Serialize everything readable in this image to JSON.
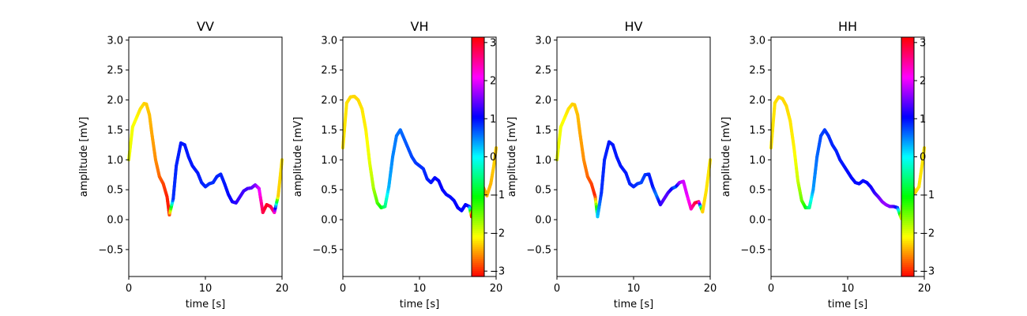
{
  "chart_data": {
    "type": "line",
    "xlabel": "time [s]",
    "ylabel": "amplitude [mV]",
    "xlim": [
      0,
      20
    ],
    "ylim": [
      -0.95,
      3.05
    ],
    "xticks": [
      "0",
      "10",
      "20"
    ],
    "yticks": [
      "−0.5",
      "0.0",
      "0.5",
      "1.0",
      "1.5",
      "2.0",
      "2.5",
      "3.0"
    ],
    "colorbar": {
      "colormap": "hsv",
      "range": [
        -3.14159,
        3.14159
      ],
      "ticks": [
        "−3",
        "−2",
        "−1",
        "0",
        "1",
        "2",
        "3"
      ]
    },
    "panels": [
      {
        "title": "VV",
        "x": [
          0,
          0.5,
          1,
          1.5,
          2,
          2.3,
          2.7,
          3,
          3.5,
          4,
          4.5,
          5,
          5.3,
          5.8,
          6.2,
          6.8,
          7.3,
          7.8,
          8.3,
          9,
          9.5,
          10,
          10.5,
          11,
          11.5,
          12,
          12.5,
          13,
          13.5,
          14,
          14.5,
          15,
          15.5,
          16,
          16.5,
          17,
          17.5,
          18,
          18.5,
          19,
          19.5,
          20
        ],
        "y": [
          1.0,
          1.55,
          1.7,
          1.85,
          1.94,
          1.93,
          1.75,
          1.45,
          1.0,
          0.72,
          0.6,
          0.38,
          0.08,
          0.35,
          0.9,
          1.28,
          1.25,
          1.05,
          0.9,
          0.78,
          0.62,
          0.55,
          0.6,
          0.62,
          0.72,
          0.76,
          0.6,
          0.42,
          0.3,
          0.28,
          0.38,
          0.48,
          0.52,
          0.53,
          0.58,
          0.52,
          0.12,
          0.25,
          0.22,
          0.12,
          0.4,
          1.0
        ],
        "phase": [
          -2.0,
          -2.05,
          -2.1,
          -2.2,
          -2.25,
          -2.3,
          -2.35,
          -2.45,
          -2.55,
          -2.7,
          -2.85,
          -3.0,
          -3.05,
          0.85,
          0.9,
          0.95,
          0.95,
          0.95,
          0.95,
          0.95,
          0.9,
          0.9,
          0.85,
          0.85,
          0.9,
          0.9,
          0.95,
          1.0,
          1.1,
          1.2,
          1.3,
          1.3,
          1.3,
          1.4,
          1.5,
          1.9,
          2.8,
          3.05,
          2.9,
          2.6,
          -2.3,
          -2.2
        ],
        "colorbar": false
      },
      {
        "title": "VH",
        "x": [
          0,
          0.5,
          1,
          1.5,
          2,
          2.5,
          3,
          3.5,
          4,
          4.5,
          5,
          5.5,
          6,
          6.5,
          7,
          7.5,
          8,
          8.5,
          9,
          9.5,
          10,
          10.5,
          11,
          11.5,
          12,
          12.5,
          13,
          13.5,
          14,
          14.5,
          15,
          15.5,
          16,
          16.5,
          16.8,
          17.3,
          17.8,
          18.3,
          18.8,
          19.3,
          19.7,
          20
        ],
        "y": [
          1.2,
          1.95,
          2.05,
          2.06,
          2.0,
          1.85,
          1.5,
          0.95,
          0.52,
          0.28,
          0.2,
          0.22,
          0.55,
          1.05,
          1.4,
          1.5,
          1.35,
          1.2,
          1.05,
          0.95,
          0.9,
          0.85,
          0.68,
          0.62,
          0.7,
          0.65,
          0.5,
          0.42,
          0.38,
          0.32,
          0.2,
          0.15,
          0.25,
          0.22,
          0.05,
          0.4,
          0.58,
          0.55,
          0.4,
          0.6,
          0.9,
          1.2
        ],
        "phase": [
          -2.2,
          -2.2,
          -2.25,
          -2.25,
          -2.25,
          -2.2,
          -2.15,
          -2.0,
          -1.75,
          -1.4,
          -1.1,
          -0.6,
          0.3,
          0.5,
          0.55,
          0.6,
          0.65,
          0.7,
          0.75,
          0.8,
          0.85,
          0.85,
          0.9,
          0.95,
          1.0,
          1.05,
          1.05,
          1.0,
          1.0,
          1.0,
          1.05,
          1.05,
          1.05,
          1.1,
          -3.0,
          -2.7,
          -2.5,
          -2.5,
          -2.4,
          -2.4,
          -2.3,
          -2.3
        ],
        "colorbar": true
      },
      {
        "title": "HV",
        "x": [
          0,
          0.5,
          1,
          1.5,
          2,
          2.3,
          2.7,
          3,
          3.5,
          4,
          4.5,
          5,
          5.3,
          5.8,
          6.2,
          6.8,
          7.3,
          7.8,
          8.3,
          9,
          9.5,
          10,
          10.5,
          11,
          11.5,
          12,
          12.5,
          13,
          13.5,
          14,
          14.5,
          15,
          15.5,
          16,
          16.5,
          17,
          17.5,
          18,
          18.5,
          19,
          19.5,
          20
        ],
        "y": [
          1.0,
          1.55,
          1.7,
          1.85,
          1.93,
          1.92,
          1.75,
          1.45,
          1.0,
          0.72,
          0.6,
          0.38,
          0.05,
          0.45,
          1.0,
          1.3,
          1.25,
          1.05,
          0.9,
          0.78,
          0.6,
          0.55,
          0.6,
          0.62,
          0.75,
          0.76,
          0.55,
          0.4,
          0.25,
          0.35,
          0.45,
          0.52,
          0.55,
          0.62,
          0.64,
          0.4,
          0.18,
          0.28,
          0.3,
          0.13,
          0.5,
          1.0
        ],
        "phase": [
          -2.0,
          -2.05,
          -2.1,
          -2.2,
          -2.25,
          -2.3,
          -2.35,
          -2.45,
          -2.55,
          -2.7,
          -2.85,
          -3.0,
          0.2,
          0.85,
          0.9,
          0.95,
          0.95,
          0.95,
          0.95,
          0.95,
          0.9,
          0.9,
          0.85,
          0.75,
          0.8,
          0.9,
          1.0,
          0.5,
          1.2,
          1.4,
          1.4,
          1.1,
          0.6,
          1.6,
          1.9,
          2.0,
          2.3,
          2.8,
          3.0,
          -2.3,
          -2.2,
          -2.2
        ],
        "colorbar": false
      },
      {
        "title": "HH",
        "x": [
          0,
          0.5,
          1,
          1.5,
          2,
          2.5,
          3,
          3.5,
          4,
          4.5,
          5,
          5.5,
          6,
          6.5,
          7,
          7.5,
          8,
          8.5,
          9,
          9.5,
          10,
          10.5,
          11,
          11.5,
          12,
          12.5,
          13,
          13.5,
          14,
          14.5,
          15,
          15.5,
          16,
          16.5,
          17,
          17.3,
          17.8,
          18.3,
          18.8,
          19.3,
          19.7,
          20
        ],
        "y": [
          1.2,
          1.95,
          2.05,
          2.02,
          1.9,
          1.65,
          1.2,
          0.65,
          0.32,
          0.2,
          0.2,
          0.5,
          1.05,
          1.4,
          1.5,
          1.4,
          1.25,
          1.15,
          1.0,
          0.9,
          0.8,
          0.7,
          0.62,
          0.6,
          0.65,
          0.62,
          0.55,
          0.45,
          0.38,
          0.3,
          0.25,
          0.22,
          0.22,
          0.2,
          0.02,
          0.45,
          0.65,
          0.62,
          0.45,
          0.55,
          0.9,
          1.2
        ],
        "phase": [
          -2.2,
          -2.2,
          -2.25,
          -2.25,
          -2.25,
          -2.2,
          -2.15,
          -1.9,
          -1.5,
          -1.1,
          -0.5,
          0.4,
          0.6,
          0.75,
          0.8,
          0.85,
          0.9,
          0.9,
          0.95,
          0.95,
          1.0,
          1.0,
          1.0,
          1.0,
          1.0,
          1.05,
          1.1,
          1.2,
          1.4,
          1.6,
          1.7,
          1.6,
          1.4,
          1.0,
          -2.0,
          -2.3,
          -2.4,
          -2.4,
          -2.3,
          -2.2,
          -2.2,
          -2.2
        ],
        "colorbar": true
      }
    ]
  }
}
